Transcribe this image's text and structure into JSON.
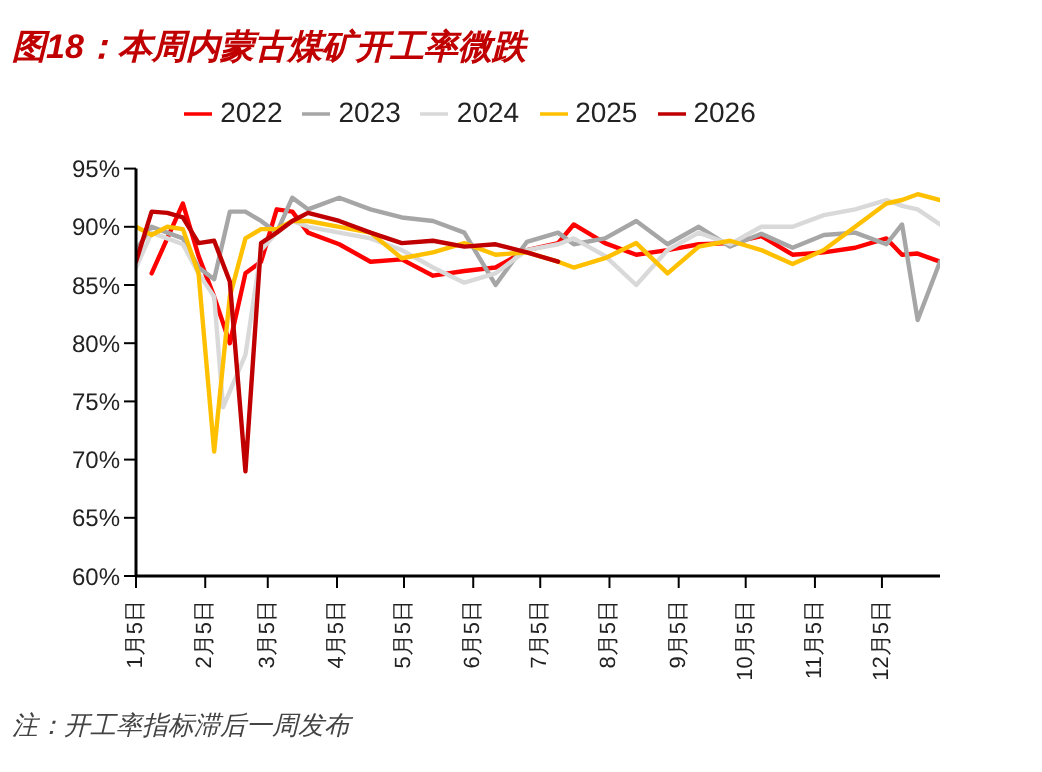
{
  "chart_data": {
    "type": "line",
    "title": "图18：本周内蒙古煤矿开工率微跌",
    "annotations": [
      "注：开工率指标滞后一周发布"
    ],
    "x": [
      "--01-05",
      "--01-12",
      "--01-19",
      "--01-26",
      "--02-02",
      "--02-09",
      "--02-16",
      "--02-23",
      "--03-02",
      "--03-09",
      "--03-16",
      "--03-23",
      "--04-06",
      "--04-20",
      "--05-04",
      "--05-18",
      "--06-01",
      "--06-15",
      "--06-29",
      "--07-13",
      "--07-20",
      "--08-03",
      "--08-17",
      "--08-31",
      "--09-14",
      "--09-28",
      "--10-12",
      "--10-26",
      "--11-09",
      "--11-23",
      "--12-07",
      "--12-14",
      "--12-21",
      "--12-31"
    ],
    "series": [
      {
        "name": "2022",
        "color": "#ff0000",
        "values": [
          null,
          86,
          89,
          92,
          87.5,
          84,
          80,
          86,
          87,
          91.5,
          91.3,
          89.5,
          88.5,
          87,
          87.2,
          85.8,
          86.2,
          86.5,
          88,
          88.6,
          90.2,
          88.6,
          87.6,
          88,
          88.5,
          88.6,
          89.2,
          87.6,
          87.8,
          88.2,
          89,
          87.6,
          87.7,
          87
        ]
      },
      {
        "name": "2023",
        "color": "#a6a6a6",
        "values": [
          88,
          90,
          89.5,
          89,
          86.5,
          85.5,
          91.3,
          91.3,
          90.5,
          89.5,
          92.5,
          91.5,
          92.5,
          91.5,
          90.8,
          90.5,
          89.5,
          85,
          88.7,
          89.5,
          88.5,
          89,
          90.5,
          88.5,
          90,
          88.3,
          89.4,
          88.2,
          89.3,
          89.5,
          88.5,
          90.2,
          82,
          87
        ]
      },
      {
        "name": "2024",
        "color": "#d9d9d9",
        "x": [
          "--01-05",
          "--01-12",
          "--01-19",
          "--01-26",
          "--02-02",
          "--02-09",
          "--02-13",
          "--02-23",
          "--03-02",
          "--03-09",
          "--03-16",
          "--03-23",
          "--04-06",
          "--04-20",
          "--05-04",
          "--05-18",
          "--06-01",
          "--06-15",
          "--06-29",
          "--07-13",
          "--07-20",
          "--08-03",
          "--08-17",
          "--08-31",
          "--09-14",
          "--09-28",
          "--10-12",
          "--10-26",
          "--11-09",
          "--11-23",
          "--12-07",
          "--12-14",
          "--12-21",
          "--12-31"
        ],
        "values": [
          86.5,
          89.5,
          89,
          88.5,
          86,
          84,
          74.5,
          79,
          88,
          89.5,
          90.5,
          90,
          89.5,
          89,
          88,
          86.5,
          85.2,
          86,
          88,
          88.5,
          89,
          87.5,
          85,
          88,
          89.5,
          88.5,
          90,
          90,
          91,
          91.5,
          92.3,
          91.8,
          91.5,
          90.2
        ]
      },
      {
        "name": "2025",
        "color": "#ffc000",
        "values": [
          90,
          89.3,
          90,
          89.8,
          86,
          70.7,
          84,
          89,
          89.8,
          89.8,
          90.5,
          90.5,
          90,
          89.5,
          87.3,
          87.8,
          88.6,
          87.6,
          87.8,
          87,
          86.5,
          87.3,
          88.6,
          86,
          88.3,
          88.8,
          88,
          86.8,
          88,
          90,
          92,
          92.3,
          92.8,
          92.3
        ]
      },
      {
        "name": "2026",
        "color": "#c00000",
        "x": [
          "--01-05",
          "--01-12",
          "--01-19",
          "--01-26",
          "--02-02",
          "--02-09",
          "--02-16",
          "--02-23",
          "--03-02",
          "--03-09",
          "--03-16",
          "--03-23",
          "--04-06",
          "--04-20",
          "--05-04",
          "--05-18",
          "--06-01",
          "--06-15",
          "--06-29",
          "--07-13"
        ],
        "values": [
          87,
          91.3,
          91.2,
          90.8,
          88.6,
          88.8,
          85.3,
          69,
          88.6,
          89.5,
          90.5,
          91.2,
          90.5,
          89.5,
          88.6,
          88.8,
          88.3,
          88.5,
          87.8,
          87
        ]
      }
    ],
    "xlim": [
      "--01-05",
      "--12-31"
    ],
    "xticks": [
      {
        "value": "--01-05",
        "label": "1月5日"
      },
      {
        "value": "--02-05",
        "label": "2月5日"
      },
      {
        "value": "--03-05",
        "label": "3月5日"
      },
      {
        "value": "--04-05",
        "label": "4月5日"
      },
      {
        "value": "--05-05",
        "label": "5月5日"
      },
      {
        "value": "--06-05",
        "label": "6月5日"
      },
      {
        "value": "--07-05",
        "label": "7月5日"
      },
      {
        "value": "--08-05",
        "label": "8月5日"
      },
      {
        "value": "--09-05",
        "label": "9月5日"
      },
      {
        "value": "--10-05",
        "label": "10月5日"
      },
      {
        "value": "--11-05",
        "label": "11月5日"
      },
      {
        "value": "--12-05",
        "label": "12月5日"
      }
    ],
    "ylim": [
      60,
      95
    ],
    "yticks": [
      {
        "value": 60,
        "label": "60%"
      },
      {
        "value": 65,
        "label": "65%"
      },
      {
        "value": 70,
        "label": "70%"
      },
      {
        "value": 75,
        "label": "75%"
      },
      {
        "value": 80,
        "label": "80%"
      },
      {
        "value": 85,
        "label": "85%"
      },
      {
        "value": 90,
        "label": "90%"
      },
      {
        "value": 95,
        "label": "95%"
      }
    ],
    "grid": false,
    "legend": "top",
    "marker": "none",
    "line_style": "solid"
  }
}
